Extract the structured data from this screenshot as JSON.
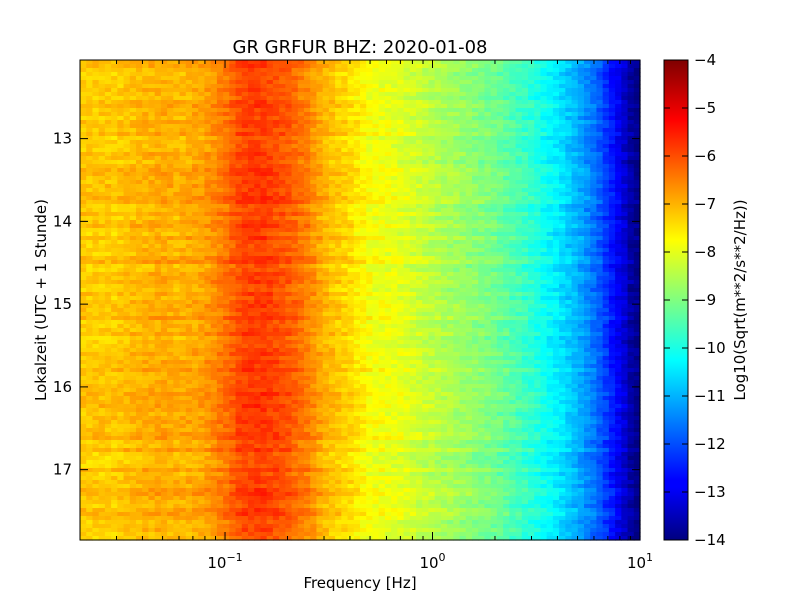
{
  "chart_data": {
    "type": "heatmap",
    "title": "GR GRFUR BHZ: 2020-01-08",
    "xlabel": "Frequency [Hz]",
    "ylabel": "Lokalzeit (UTC + 1 Stunde)",
    "x_scale": "log",
    "xlim": [
      0.02,
      10
    ],
    "x_ticks": [
      {
        "value": 0.1,
        "base": "10",
        "exp": "−1"
      },
      {
        "value": 1,
        "base": "10",
        "exp": "0"
      },
      {
        "value": 10,
        "base": "10",
        "exp": "1"
      }
    ],
    "ylim": [
      12.05,
      17.85
    ],
    "y_ticks": [
      13,
      14,
      15,
      16,
      17
    ],
    "y_tick_labels": [
      "13",
      "14",
      "15",
      "16",
      "17"
    ],
    "colorbar": {
      "colormap": "jet",
      "label": "Log10(Sqrt(m**2/s**2/Hz))",
      "range": [
        -14,
        -4
      ],
      "ticks": [
        -4,
        -5,
        -6,
        -7,
        -8,
        -9,
        -10,
        -11,
        -12,
        -13,
        -14
      ],
      "tick_labels": [
        "−4",
        "−5",
        "−6",
        "−7",
        "−8",
        "−9",
        "−10",
        "−11",
        "−12",
        "−13",
        "−14"
      ]
    },
    "spectrum_profile": {
      "frequencies_hz": [
        0.02,
        0.03,
        0.04,
        0.05,
        0.06,
        0.08,
        0.1,
        0.12,
        0.15,
        0.2,
        0.25,
        0.3,
        0.4,
        0.5,
        0.7,
        1.0,
        1.5,
        2.0,
        3.0,
        4.0,
        5.0,
        6.0,
        7.0,
        8.0,
        9.0,
        10.0
      ],
      "values_log10": [
        -7.2,
        -7.2,
        -7.0,
        -6.9,
        -7.0,
        -6.8,
        -6.4,
        -5.9,
        -5.8,
        -6.1,
        -6.5,
        -7.0,
        -7.4,
        -7.8,
        -8.0,
        -8.4,
        -8.8,
        -9.1,
        -9.8,
        -10.4,
        -11.0,
        -11.6,
        -12.3,
        -12.9,
        -13.6,
        -14.0
      ]
    }
  }
}
